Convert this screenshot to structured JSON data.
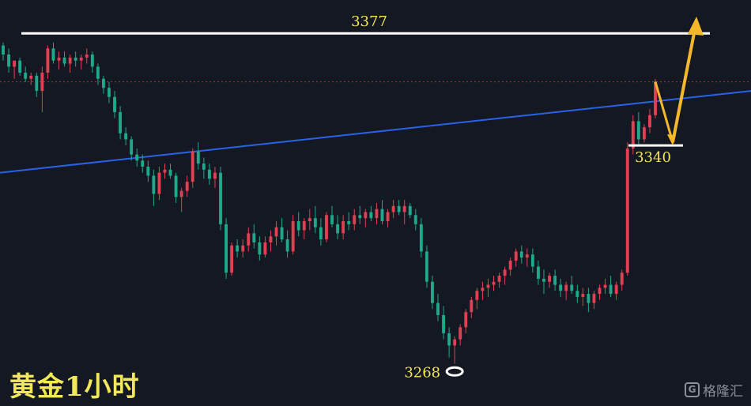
{
  "title": "黄金1小时",
  "watermark": {
    "icon": "G",
    "text": "格隆汇"
  },
  "colors": {
    "up": "#e04152",
    "down": "#1fa98a",
    "resistance": "#ffffff",
    "trendline": "#2a62e6",
    "projection": "#f5b82a",
    "label": "#f5e65a",
    "current_price_line": "#b0313a"
  },
  "chart_data": {
    "type": "candlestick",
    "ylim": [
      3254,
      3388
    ],
    "annotations": {
      "resistance": {
        "value": 3377,
        "label": "3377"
      },
      "support": {
        "value": 3340,
        "label": "3340"
      },
      "low": {
        "value": 3268,
        "label": "3268",
        "marker": "circle"
      },
      "trendline": {
        "start_value": 3331,
        "end_value": 3358
      },
      "current_price": 3361,
      "projection": {
        "from": 3361,
        "down_to": 3340,
        "up_to": 3382,
        "direction": "down-then-up"
      }
    },
    "candles": [
      [
        3373,
        3374,
        3368,
        3370
      ],
      [
        3370,
        3372,
        3364,
        3366
      ],
      [
        3366,
        3368,
        3362,
        3368
      ],
      [
        3368,
        3369,
        3363,
        3364
      ],
      [
        3364,
        3366,
        3361,
        3362
      ],
      [
        3362,
        3364,
        3360,
        3363
      ],
      [
        3363,
        3364,
        3356,
        3358
      ],
      [
        3358,
        3366,
        3351,
        3364
      ],
      [
        3364,
        3373,
        3362,
        3372
      ],
      [
        3372,
        3374,
        3367,
        3368
      ],
      [
        3368,
        3371,
        3365,
        3369
      ],
      [
        3369,
        3371,
        3366,
        3367
      ],
      [
        3367,
        3370,
        3364,
        3369
      ],
      [
        3369,
        3371,
        3366,
        3368
      ],
      [
        3368,
        3370,
        3365,
        3369
      ],
      [
        3369,
        3372,
        3367,
        3370
      ],
      [
        3370,
        3371,
        3364,
        3366
      ],
      [
        3366,
        3367,
        3360,
        3362
      ],
      [
        3362,
        3363,
        3357,
        3359
      ],
      [
        3359,
        3361,
        3354,
        3356
      ],
      [
        3356,
        3358,
        3349,
        3351
      ],
      [
        3351,
        3353,
        3342,
        3344
      ],
      [
        3344,
        3346,
        3340,
        3342
      ],
      [
        3342,
        3343,
        3335,
        3337
      ],
      [
        3337,
        3339,
        3333,
        3335
      ],
      [
        3335,
        3337,
        3331,
        3333
      ],
      [
        3333,
        3335,
        3328,
        3330
      ],
      [
        3330,
        3332,
        3320,
        3324
      ],
      [
        3324,
        3333,
        3322,
        3331
      ],
      [
        3331,
        3334,
        3329,
        3332
      ],
      [
        3332,
        3334,
        3329,
        3330
      ],
      [
        3330,
        3331,
        3321,
        3323
      ],
      [
        3323,
        3326,
        3318,
        3325
      ],
      [
        3325,
        3330,
        3323,
        3328
      ],
      [
        3328,
        3339,
        3326,
        3338
      ],
      [
        3338,
        3341,
        3332,
        3334
      ],
      [
        3334,
        3336,
        3329,
        3332
      ],
      [
        3332,
        3334,
        3327,
        3329
      ],
      [
        3329,
        3333,
        3326,
        3331
      ],
      [
        3331,
        3333,
        3312,
        3314
      ],
      [
        3314,
        3316,
        3296,
        3298
      ],
      [
        3298,
        3308,
        3297,
        3307
      ],
      [
        3307,
        3309,
        3303,
        3305
      ],
      [
        3305,
        3309,
        3303,
        3307
      ],
      [
        3307,
        3313,
        3305,
        3311
      ],
      [
        3311,
        3314,
        3306,
        3308
      ],
      [
        3308,
        3310,
        3302,
        3304
      ],
      [
        3304,
        3310,
        3303,
        3308
      ],
      [
        3308,
        3312,
        3305,
        3310
      ],
      [
        3310,
        3315,
        3307,
        3313
      ],
      [
        3313,
        3316,
        3308,
        3309
      ],
      [
        3309,
        3312,
        3303,
        3305
      ],
      [
        3305,
        3317,
        3304,
        3315
      ],
      [
        3315,
        3318,
        3310,
        3312
      ],
      [
        3312,
        3316,
        3309,
        3315
      ],
      [
        3315,
        3319,
        3312,
        3316
      ],
      [
        3316,
        3320,
        3311,
        3313
      ],
      [
        3313,
        3316,
        3307,
        3309
      ],
      [
        3309,
        3318,
        3308,
        3317
      ],
      [
        3317,
        3320,
        3313,
        3314
      ],
      [
        3314,
        3317,
        3309,
        3311
      ],
      [
        3311,
        3317,
        3309,
        3315
      ],
      [
        3315,
        3318,
        3312,
        3314
      ],
      [
        3314,
        3319,
        3312,
        3317
      ],
      [
        3317,
        3320,
        3314,
        3316
      ],
      [
        3316,
        3319,
        3313,
        3318
      ],
      [
        3318,
        3320,
        3315,
        3316
      ],
      [
        3316,
        3321,
        3314,
        3319
      ],
      [
        3319,
        3322,
        3314,
        3315
      ],
      [
        3315,
        3319,
        3313,
        3318
      ],
      [
        3318,
        3322,
        3316,
        3320
      ],
      [
        3320,
        3322,
        3317,
        3318
      ],
      [
        3318,
        3322,
        3314,
        3320
      ],
      [
        3320,
        3321,
        3316,
        3317
      ],
      [
        3317,
        3319,
        3312,
        3314
      ],
      [
        3314,
        3316,
        3303,
        3305
      ],
      [
        3305,
        3307,
        3293,
        3295
      ],
      [
        3295,
        3297,
        3286,
        3288
      ],
      [
        3288,
        3291,
        3282,
        3284
      ],
      [
        3284,
        3287,
        3276,
        3278
      ],
      [
        3278,
        3280,
        3270,
        3274
      ],
      [
        3274,
        3277,
        3268,
        3276
      ],
      [
        3276,
        3281,
        3274,
        3280
      ],
      [
        3280,
        3286,
        3278,
        3285
      ],
      [
        3285,
        3290,
        3283,
        3289
      ],
      [
        3289,
        3293,
        3286,
        3292
      ],
      [
        3292,
        3295,
        3289,
        3293
      ],
      [
        3293,
        3296,
        3290,
        3294
      ],
      [
        3294,
        3297,
        3292,
        3295
      ],
      [
        3295,
        3298,
        3293,
        3297
      ],
      [
        3297,
        3300,
        3294,
        3299
      ],
      [
        3299,
        3303,
        3297,
        3302
      ],
      [
        3302,
        3306,
        3300,
        3305
      ],
      [
        3305,
        3307,
        3301,
        3303
      ],
      [
        3303,
        3306,
        3300,
        3304
      ],
      [
        3304,
        3306,
        3298,
        3300
      ],
      [
        3300,
        3302,
        3294,
        3296
      ],
      [
        3296,
        3299,
        3291,
        3295
      ],
      [
        3295,
        3298,
        3293,
        3297
      ],
      [
        3297,
        3299,
        3292,
        3294
      ],
      [
        3294,
        3296,
        3290,
        3292
      ],
      [
        3292,
        3295,
        3289,
        3294
      ],
      [
        3294,
        3297,
        3291,
        3292
      ],
      [
        3292,
        3294,
        3288,
        3290
      ],
      [
        3290,
        3293,
        3287,
        3291
      ],
      [
        3291,
        3293,
        3285,
        3288
      ],
      [
        3288,
        3292,
        3286,
        3291
      ],
      [
        3291,
        3294,
        3289,
        3293
      ],
      [
        3293,
        3296,
        3291,
        3294
      ],
      [
        3294,
        3297,
        3290,
        3291
      ],
      [
        3291,
        3295,
        3289,
        3294
      ],
      [
        3294,
        3299,
        3292,
        3298
      ],
      [
        3298,
        3341,
        3297,
        3339
      ],
      [
        3339,
        3350,
        3337,
        3348
      ],
      [
        3348,
        3351,
        3340,
        3342
      ],
      [
        3342,
        3347,
        3341,
        3346
      ],
      [
        3346,
        3352,
        3344,
        3350
      ],
      [
        3350,
        3362,
        3349,
        3361
      ]
    ]
  }
}
